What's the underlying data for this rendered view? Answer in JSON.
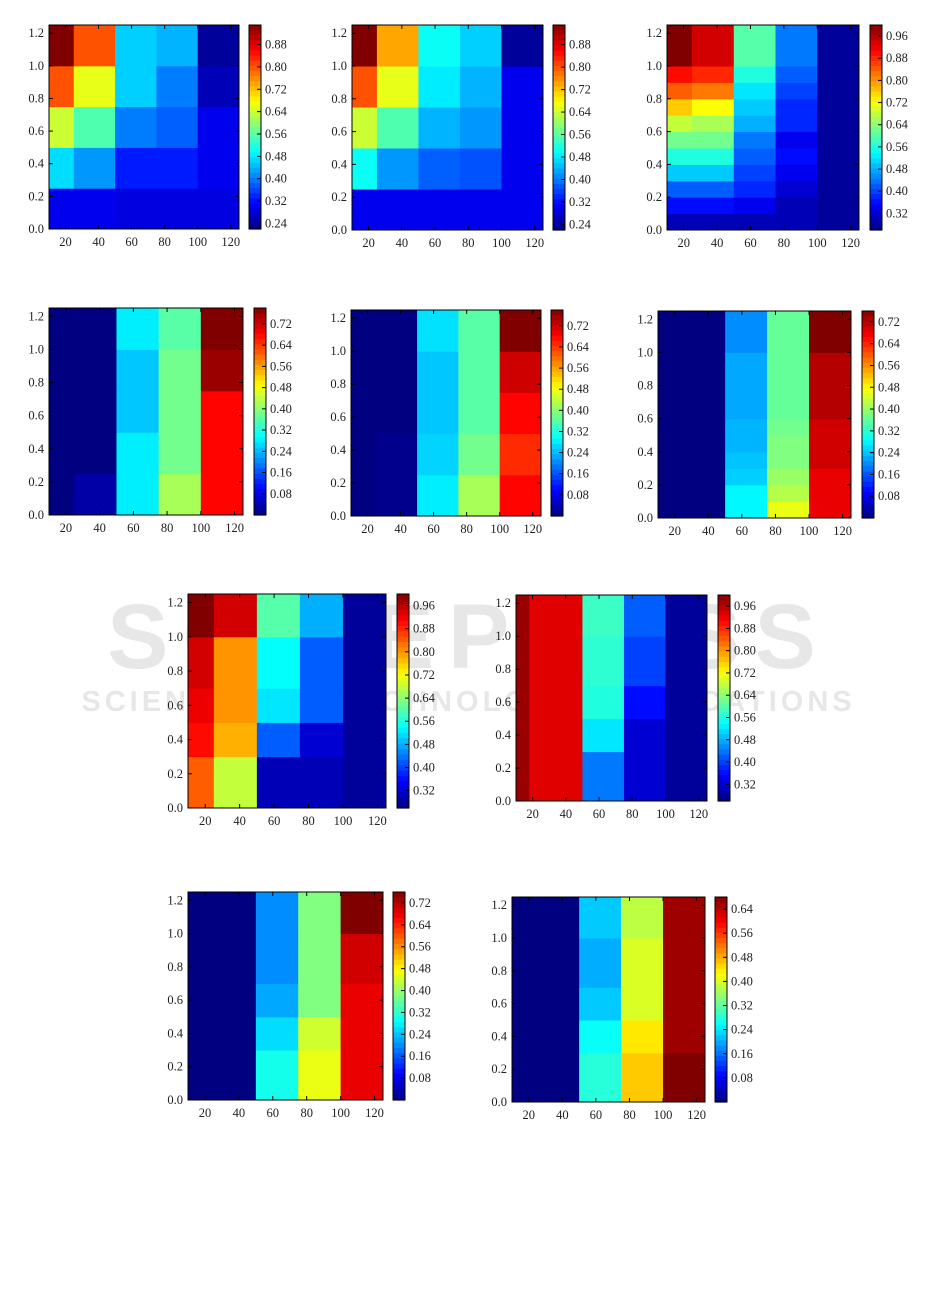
{
  "watermark": {
    "line1": "SCITEPRESS",
    "line2": "SCIENCE AND TECHNOLOGY PUBLICATIONS"
  },
  "chart_data": [
    {
      "type": "heatmap",
      "colormap": "jet",
      "xlim": [
        10,
        125
      ],
      "ylim": [
        0,
        1.25
      ],
      "xticks": [
        "20",
        "40",
        "60",
        "80",
        "100",
        "120"
      ],
      "yticks": [
        "0.0",
        "0.2",
        "0.4",
        "0.6",
        "0.8",
        "1.0",
        "1.2"
      ],
      "x_edges": [
        10,
        25,
        50,
        75,
        100,
        125
      ],
      "y_edges": [
        0,
        0.25,
        0.5,
        0.75,
        1.0,
        1.25
      ],
      "color_range": [
        0.22,
        0.95
      ],
      "colorbar_ticks": [
        "0.24",
        "0.32",
        "0.40",
        "0.48",
        "0.56",
        "0.64",
        "0.72",
        "0.80",
        "0.88"
      ],
      "values": [
        [
          0.3,
          0.3,
          0.29,
          0.29,
          0.29
        ],
        [
          0.47,
          0.42,
          0.33,
          0.33,
          0.3
        ],
        [
          0.64,
          0.55,
          0.4,
          0.38,
          0.3
        ],
        [
          0.8,
          0.66,
          0.46,
          0.4,
          0.26
        ],
        [
          0.95,
          0.8,
          0.46,
          0.44,
          0.24
        ]
      ]
    },
    {
      "type": "heatmap",
      "colormap": "jet",
      "xlim": [
        10,
        125
      ],
      "ylim": [
        0,
        1.25
      ],
      "xticks": [
        "20",
        "40",
        "60",
        "80",
        "100",
        "120"
      ],
      "yticks": [
        "0.0",
        "0.2",
        "0.4",
        "0.6",
        "0.8",
        "1.0",
        "1.2"
      ],
      "x_edges": [
        10,
        25,
        50,
        75,
        100,
        125
      ],
      "y_edges": [
        0,
        0.25,
        0.5,
        0.75,
        1.0,
        1.25
      ],
      "color_range": [
        0.22,
        0.95
      ],
      "colorbar_ticks": [
        "0.24",
        "0.32",
        "0.40",
        "0.48",
        "0.56",
        "0.64",
        "0.72",
        "0.80",
        "0.88"
      ],
      "values": [
        [
          0.3,
          0.3,
          0.3,
          0.3,
          0.3
        ],
        [
          0.5,
          0.42,
          0.38,
          0.37,
          0.3
        ],
        [
          0.64,
          0.55,
          0.44,
          0.42,
          0.3
        ],
        [
          0.8,
          0.66,
          0.48,
          0.44,
          0.3
        ],
        [
          0.95,
          0.74,
          0.5,
          0.46,
          0.24
        ]
      ]
    },
    {
      "type": "heatmap",
      "colormap": "jet",
      "xlim": [
        10,
        125
      ],
      "ylim": [
        0,
        1.25
      ],
      "xticks": [
        "20",
        "40",
        "60",
        "80",
        "100",
        "120"
      ],
      "yticks": [
        "0.0",
        "0.2",
        "0.4",
        "0.6",
        "0.8",
        "1.0",
        "1.2"
      ],
      "x_edges": [
        10,
        25,
        50,
        75,
        100,
        125
      ],
      "y_edges": [
        0,
        0.1,
        0.2,
        0.3,
        0.4,
        0.5,
        0.6,
        0.7,
        0.8,
        0.9,
        1.0,
        1.25
      ],
      "color_range": [
        0.26,
        1.0
      ],
      "colorbar_ticks": [
        "0.32",
        "0.40",
        "0.48",
        "0.56",
        "0.64",
        "0.72",
        "0.80",
        "0.88",
        "0.96"
      ],
      "values": [
        [
          0.3,
          0.3,
          0.3,
          0.3,
          0.28
        ],
        [
          0.36,
          0.36,
          0.34,
          0.3,
          0.28
        ],
        [
          0.42,
          0.42,
          0.38,
          0.32,
          0.28
        ],
        [
          0.5,
          0.5,
          0.4,
          0.34,
          0.28
        ],
        [
          0.56,
          0.56,
          0.42,
          0.36,
          0.28
        ],
        [
          0.62,
          0.62,
          0.44,
          0.34,
          0.28
        ],
        [
          0.68,
          0.66,
          0.48,
          0.38,
          0.28
        ],
        [
          0.76,
          0.72,
          0.5,
          0.38,
          0.28
        ],
        [
          0.84,
          0.82,
          0.52,
          0.4,
          0.28
        ],
        [
          0.9,
          0.88,
          0.56,
          0.42,
          0.28
        ],
        [
          1.0,
          0.94,
          0.6,
          0.44,
          0.28
        ]
      ]
    },
    {
      "type": "heatmap",
      "colormap": "jet",
      "xlim": [
        10,
        125
      ],
      "ylim": [
        0,
        1.25
      ],
      "xticks": [
        "20",
        "40",
        "60",
        "80",
        "100",
        "120"
      ],
      "yticks": [
        "0.0",
        "0.2",
        "0.4",
        "0.6",
        "0.8",
        "1.0",
        "1.2"
      ],
      "x_edges": [
        10,
        25,
        50,
        75,
        100,
        125
      ],
      "y_edges": [
        0,
        0.25,
        0.5,
        0.75,
        1.0,
        1.25
      ],
      "color_range": [
        0.0,
        0.78
      ],
      "colorbar_ticks": [
        "0.08",
        "0.16",
        "0.24",
        "0.32",
        "0.40",
        "0.48",
        "0.56",
        "0.64",
        "0.72"
      ],
      "values": [
        [
          0.0,
          0.03,
          0.28,
          0.42,
          0.68
        ],
        [
          0.0,
          0.0,
          0.28,
          0.38,
          0.68
        ],
        [
          0.0,
          0.0,
          0.25,
          0.38,
          0.68
        ],
        [
          0.0,
          0.0,
          0.25,
          0.38,
          0.76
        ],
        [
          0.0,
          0.0,
          0.28,
          0.36,
          0.78
        ]
      ]
    },
    {
      "type": "heatmap",
      "colormap": "jet",
      "xlim": [
        10,
        125
      ],
      "ylim": [
        0,
        1.25
      ],
      "xticks": [
        "20",
        "40",
        "60",
        "80",
        "100",
        "120"
      ],
      "yticks": [
        "0.0",
        "0.2",
        "0.4",
        "0.6",
        "0.8",
        "1.0",
        "1.2"
      ],
      "x_edges": [
        10,
        25,
        50,
        75,
        100,
        125
      ],
      "y_edges": [
        0,
        0.25,
        0.5,
        0.75,
        1.0,
        1.25
      ],
      "color_range": [
        0.0,
        0.78
      ],
      "colorbar_ticks": [
        "0.08",
        "0.16",
        "0.24",
        "0.32",
        "0.40",
        "0.48",
        "0.56",
        "0.64",
        "0.72"
      ],
      "values": [
        [
          0.0,
          0.01,
          0.28,
          0.42,
          0.68
        ],
        [
          0.0,
          0.01,
          0.26,
          0.38,
          0.65
        ],
        [
          0.0,
          0.0,
          0.25,
          0.36,
          0.68
        ],
        [
          0.0,
          0.0,
          0.25,
          0.36,
          0.72
        ],
        [
          0.0,
          0.0,
          0.27,
          0.36,
          0.78
        ]
      ]
    },
    {
      "type": "heatmap",
      "colormap": "jet",
      "xlim": [
        10,
        125
      ],
      "ylim": [
        0,
        1.25
      ],
      "xticks": [
        "20",
        "40",
        "60",
        "80",
        "100",
        "120"
      ],
      "yticks": [
        "0.0",
        "0.2",
        "0.4",
        "0.6",
        "0.8",
        "1.0",
        "1.2"
      ],
      "x_edges": [
        10,
        25,
        50,
        75,
        100,
        125
      ],
      "y_edges": [
        0,
        0.1,
        0.2,
        0.3,
        0.4,
        0.5,
        0.6,
        0.7,
        0.8,
        0.9,
        1.0,
        1.25
      ],
      "color_range": [
        0.0,
        0.76
      ],
      "colorbar_ticks": [
        "0.08",
        "0.16",
        "0.24",
        "0.32",
        "0.40",
        "0.48",
        "0.56",
        "0.64",
        "0.72"
      ],
      "values": [
        [
          0.0,
          0.0,
          0.28,
          0.46,
          0.68
        ],
        [
          0.0,
          0.0,
          0.28,
          0.42,
          0.68
        ],
        [
          0.0,
          0.0,
          0.25,
          0.4,
          0.68
        ],
        [
          0.0,
          0.0,
          0.24,
          0.38,
          0.7
        ],
        [
          0.0,
          0.0,
          0.23,
          0.38,
          0.7
        ],
        [
          0.0,
          0.0,
          0.23,
          0.37,
          0.7
        ],
        [
          0.0,
          0.0,
          0.22,
          0.36,
          0.72
        ],
        [
          0.0,
          0.0,
          0.22,
          0.36,
          0.72
        ],
        [
          0.0,
          0.0,
          0.22,
          0.36,
          0.72
        ],
        [
          0.0,
          0.0,
          0.22,
          0.36,
          0.72
        ],
        [
          0.0,
          0.0,
          0.2,
          0.36,
          0.76
        ]
      ]
    },
    {
      "type": "heatmap",
      "colormap": "jet",
      "xlim": [
        10,
        125
      ],
      "ylim": [
        0,
        1.25
      ],
      "xticks": [
        "20",
        "40",
        "60",
        "80",
        "100",
        "120"
      ],
      "yticks": [
        "0.0",
        "0.2",
        "0.4",
        "0.6",
        "0.8",
        "1.0",
        "1.2"
      ],
      "x_edges": [
        10,
        25,
        50,
        75,
        100,
        125
      ],
      "y_edges": [
        0,
        0.3,
        0.5,
        0.7,
        1.0,
        1.25
      ],
      "color_range": [
        0.26,
        1.0
      ],
      "colorbar_ticks": [
        "0.32",
        "0.40",
        "0.48",
        "0.56",
        "0.64",
        "0.72",
        "0.80",
        "0.88",
        "0.96"
      ],
      "values": [
        [
          0.84,
          0.68,
          0.3,
          0.3,
          0.28
        ],
        [
          0.9,
          0.78,
          0.42,
          0.32,
          0.28
        ],
        [
          0.92,
          0.8,
          0.52,
          0.42,
          0.28
        ],
        [
          0.94,
          0.8,
          0.54,
          0.42,
          0.28
        ],
        [
          1.0,
          0.94,
          0.6,
          0.48,
          0.28
        ]
      ]
    },
    {
      "type": "heatmap",
      "colormap": "jet",
      "xlim": [
        10,
        125
      ],
      "ylim": [
        0,
        1.25
      ],
      "xticks": [
        "20",
        "40",
        "60",
        "80",
        "100",
        "120"
      ],
      "yticks": [
        "0.0",
        "0.2",
        "0.4",
        "0.6",
        "0.8",
        "1.0",
        "1.2"
      ],
      "x_edges": [
        10,
        18,
        50,
        75,
        100,
        125
      ],
      "y_edges": [
        0,
        0.3,
        0.5,
        0.7,
        1.0,
        1.25
      ],
      "color_range": [
        0.26,
        1.0
      ],
      "colorbar_ticks": [
        "0.32",
        "0.40",
        "0.48",
        "0.56",
        "0.64",
        "0.72",
        "0.80",
        "0.88",
        "0.96"
      ],
      "values": [
        [
          0.98,
          0.93,
          0.44,
          0.32,
          0.28
        ],
        [
          0.98,
          0.93,
          0.52,
          0.32,
          0.28
        ],
        [
          0.98,
          0.93,
          0.56,
          0.36,
          0.28
        ],
        [
          0.98,
          0.93,
          0.57,
          0.4,
          0.28
        ],
        [
          0.98,
          0.93,
          0.58,
          0.42,
          0.28
        ]
      ]
    },
    {
      "type": "heatmap",
      "colormap": "jet",
      "xlim": [
        10,
        125
      ],
      "ylim": [
        0,
        1.25
      ],
      "xticks": [
        "20",
        "40",
        "60",
        "80",
        "100",
        "120"
      ],
      "yticks": [
        "0.0",
        "0.2",
        "0.4",
        "0.6",
        "0.8",
        "1.0",
        "1.2"
      ],
      "x_edges": [
        10,
        50,
        75,
        100,
        125
      ],
      "y_edges": [
        0,
        0.3,
        0.5,
        0.7,
        1.0,
        1.25
      ],
      "color_range": [
        0.0,
        0.76
      ],
      "colorbar_ticks": [
        "0.08",
        "0.16",
        "0.24",
        "0.32",
        "0.40",
        "0.48",
        "0.56",
        "0.64",
        "0.72"
      ],
      "values": [
        [
          0.0,
          0.3,
          0.46,
          0.68
        ],
        [
          0.0,
          0.26,
          0.44,
          0.68
        ],
        [
          0.0,
          0.22,
          0.38,
          0.68
        ],
        [
          0.0,
          0.2,
          0.38,
          0.7
        ],
        [
          0.0,
          0.2,
          0.38,
          0.76
        ]
      ]
    },
    {
      "type": "heatmap",
      "colormap": "jet",
      "xlim": [
        10,
        125
      ],
      "ylim": [
        0,
        1.25
      ],
      "xticks": [
        "20",
        "40",
        "60",
        "80",
        "100",
        "120"
      ],
      "yticks": [
        "0.0",
        "0.2",
        "0.4",
        "0.6",
        "0.8",
        "1.0",
        "1.2"
      ],
      "x_edges": [
        10,
        50,
        75,
        100,
        125
      ],
      "y_edges": [
        0,
        0.3,
        0.5,
        0.7,
        1.0,
        1.25
      ],
      "color_range": [
        0.0,
        0.68
      ],
      "colorbar_ticks": [
        "0.08",
        "0.16",
        "0.24",
        "0.32",
        "0.40",
        "0.48",
        "0.56",
        "0.64"
      ],
      "values": [
        [
          0.0,
          0.28,
          0.46,
          0.68
        ],
        [
          0.0,
          0.26,
          0.44,
          0.66
        ],
        [
          0.0,
          0.22,
          0.4,
          0.66
        ],
        [
          0.0,
          0.2,
          0.4,
          0.66
        ],
        [
          0.0,
          0.22,
          0.38,
          0.66
        ]
      ]
    }
  ]
}
